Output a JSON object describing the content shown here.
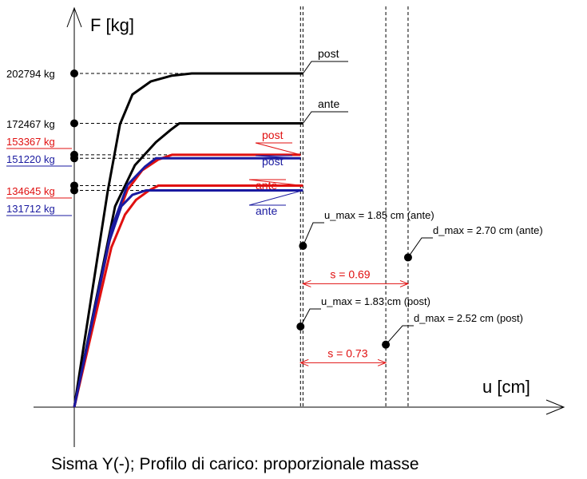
{
  "chart_data": {
    "type": "line",
    "title": "Sisma Y(-); Profilo di carico: proporzionale masse",
    "xlabel": "u [cm]",
    "ylabel": "F [kg]",
    "grid": false,
    "colors": {
      "black": "#000000",
      "red": "#e01010",
      "blue": "#1a1aa0"
    },
    "ytick_labels": [
      {
        "text": "202794 kg",
        "value": 202794,
        "color": "black"
      },
      {
        "text": "172467 kg",
        "value": 172467,
        "color": "black"
      },
      {
        "text": "153367 kg",
        "value": 153367,
        "color": "red"
      },
      {
        "text": "151220 kg",
        "value": 151220,
        "color": "blue"
      },
      {
        "text": "134645 kg",
        "value": 134645,
        "color": "red"
      },
      {
        "text": "131712 kg",
        "value": 131712,
        "color": "blue"
      }
    ],
    "series": [
      {
        "name": "post",
        "color": "black",
        "x": [
          0.0,
          0.27,
          0.37,
          0.47,
          0.62,
          0.79,
          0.95,
          1.85
        ],
        "y": [
          0,
          131000,
          172000,
          190000,
          198000,
          201500,
          202794,
          202794
        ]
      },
      {
        "name": "ante",
        "color": "black",
        "x": [
          0.0,
          0.33,
          0.49,
          0.66,
          0.78,
          0.85,
          1.85
        ],
        "y": [
          0,
          122000,
          147000,
          161000,
          168500,
          172467,
          172467
        ]
      },
      {
        "name": "post",
        "color": "red",
        "x": [
          0.0,
          0.3,
          0.43,
          0.55,
          0.68,
          0.79,
          1.83
        ],
        "y": [
          0,
          106000,
          132000,
          144000,
          150500,
          153367,
          153367
        ]
      },
      {
        "name": "post",
        "color": "blue",
        "x": [
          0.0,
          0.3,
          0.43,
          0.57,
          0.66,
          1.83
        ],
        "y": [
          0,
          108000,
          135000,
          146000,
          151220,
          151220
        ]
      },
      {
        "name": "ante",
        "color": "red",
        "x": [
          0.0,
          0.3,
          0.41,
          0.5,
          0.6,
          0.68,
          1.85
        ],
        "y": [
          0,
          97000,
          117000,
          126000,
          131500,
          134645,
          134645
        ]
      },
      {
        "name": "ante",
        "color": "blue",
        "x": [
          0.0,
          0.28,
          0.38,
          0.47,
          0.58,
          1.85
        ],
        "y": [
          0,
          100000,
          122000,
          129000,
          131712,
          131712
        ]
      }
    ],
    "vertical_lines": [
      1.83,
      1.85,
      2.52,
      2.7
    ],
    "points": [
      {
        "label": "u_max = 1.85 cm (ante)",
        "x": 1.85,
        "y": 98000
      },
      {
        "label": "d_max = 2.70 cm (ante)",
        "x": 2.7,
        "y": 91000
      },
      {
        "label": "u_max = 1.83 cm (post)",
        "x": 1.83,
        "y": 49000
      },
      {
        "label": "d_max = 2.52 cm (post)",
        "x": 2.52,
        "y": 38000
      }
    ],
    "spans": [
      {
        "label": "s = 0.69",
        "x0": 1.85,
        "x1": 2.7,
        "y": 75000,
        "color": "red"
      },
      {
        "label": "s = 0.73",
        "x0": 1.83,
        "x1": 2.52,
        "y": 27000,
        "color": "red"
      }
    ]
  }
}
